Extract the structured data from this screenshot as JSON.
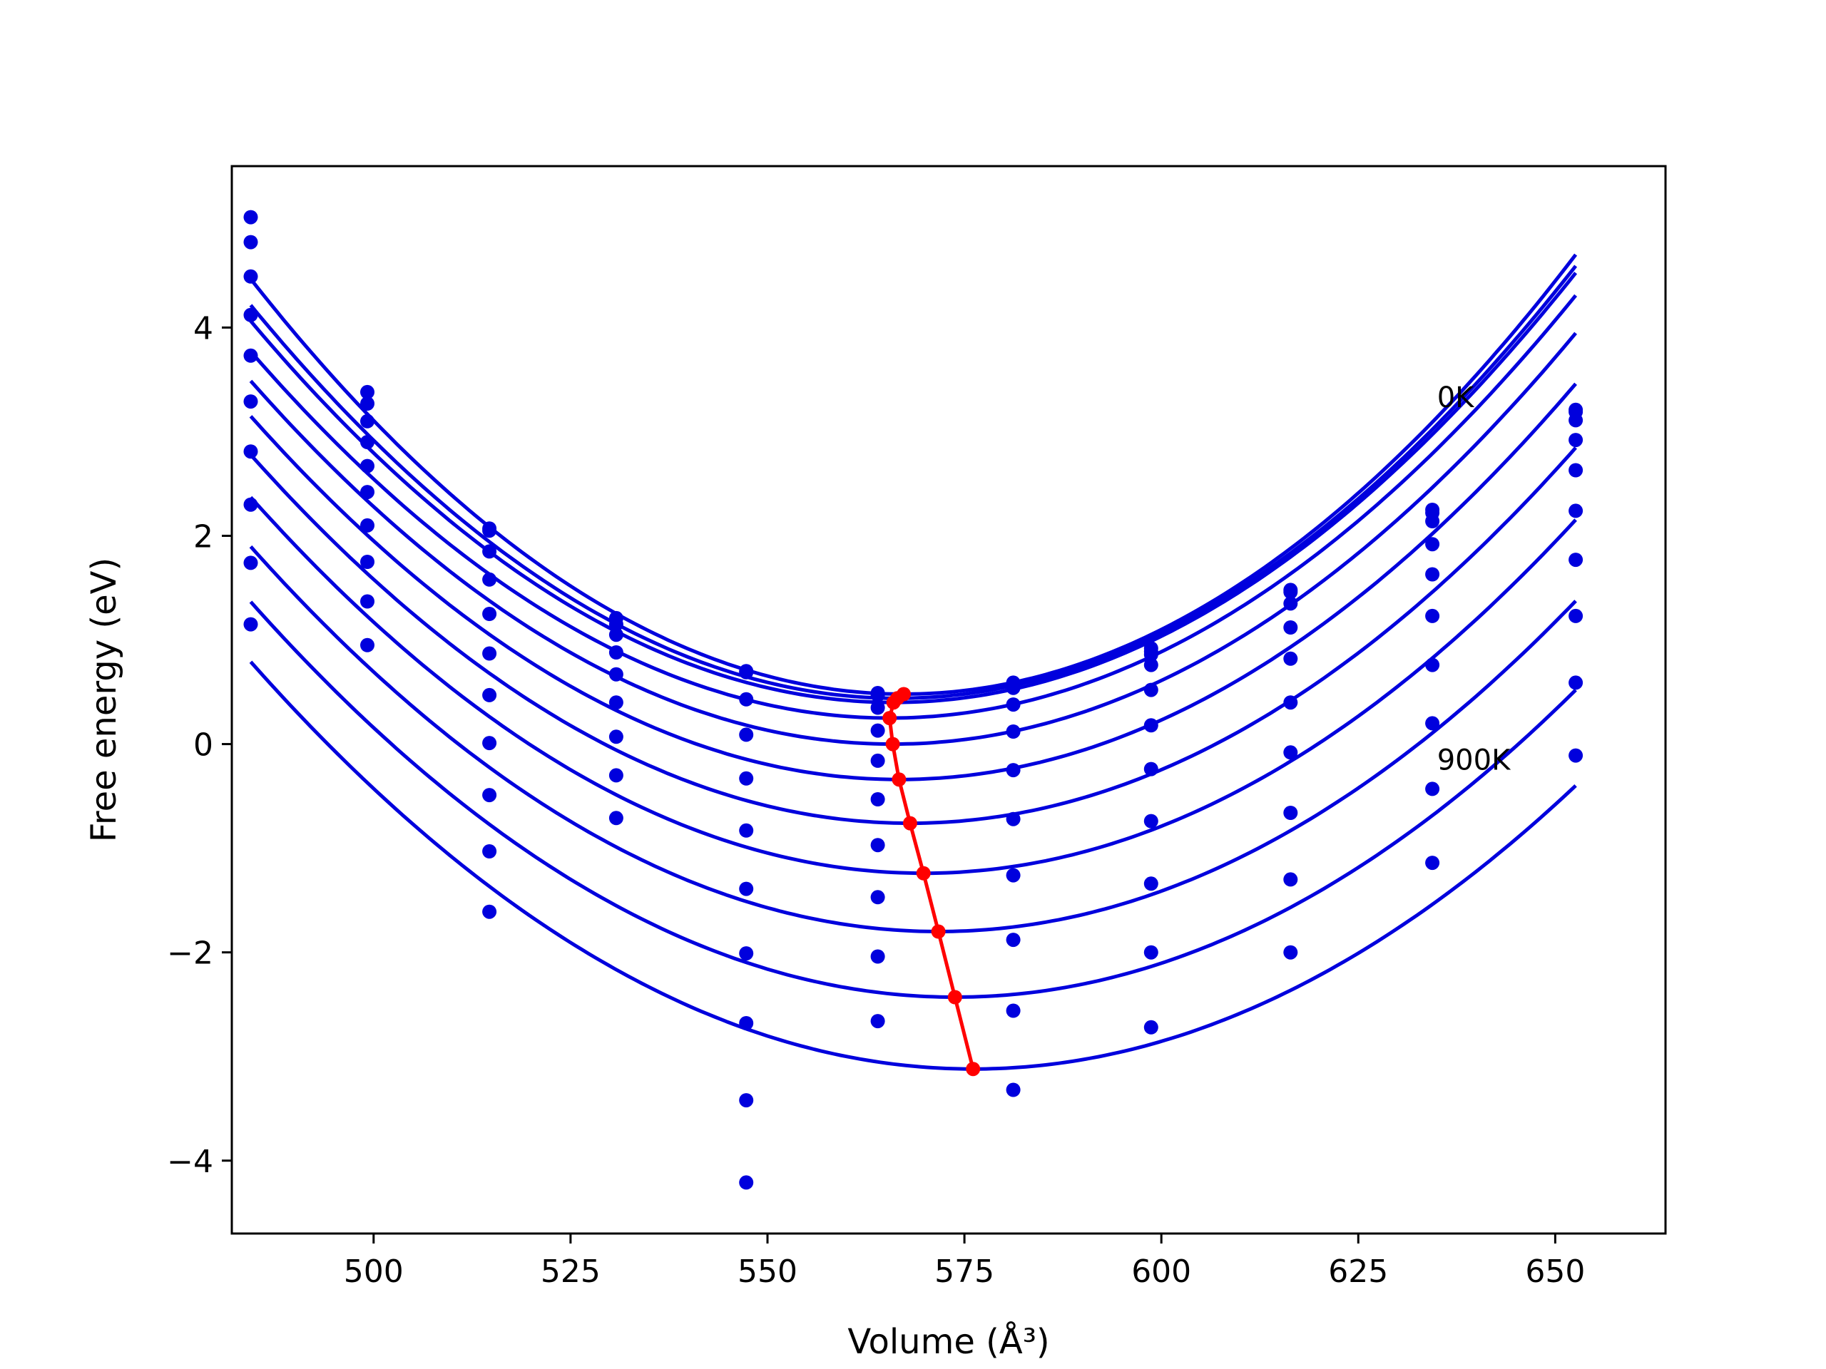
{
  "chart_data": {
    "type": "line",
    "title": "",
    "xlabel": "Volume (Å³)",
    "ylabel": "Free energy (eV)",
    "xlim": [
      482,
      664
    ],
    "ylim": [
      -4.7,
      5.55
    ],
    "xticks": [
      500,
      525,
      550,
      575,
      600,
      625,
      650
    ],
    "yticks": [
      -4,
      -2,
      0,
      2,
      4
    ],
    "xtick_labels": [
      "500",
      "525",
      "550",
      "575",
      "600",
      "625",
      "650"
    ],
    "ytick_labels": [
      "−4",
      "−2",
      "0",
      "2",
      "4"
    ],
    "grid": false,
    "legend": null,
    "annotations": [
      {
        "text": "0K",
        "x": 635,
        "y": 3.33
      },
      {
        "text": "900K",
        "x": 635,
        "y": -0.15
      }
    ],
    "volumes": [
      484.4,
      499.2,
      514.7,
      530.8,
      547.3,
      564.0,
      581.2,
      598.7,
      616.4,
      634.4,
      652.6
    ],
    "series": [
      {
        "color": "#0000dd",
        "points": [
          5.06,
          3.38,
          2.07,
          1.21,
          0.7,
          0.49,
          0.59,
          0.92,
          1.48,
          2.25,
          3.21
        ],
        "fit": {
          "a": 0.00058,
          "v0": 567.3,
          "f0": 0.48
        }
      },
      {
        "color": "#0000dd",
        "points": [
          4.82,
          3.27,
          2.05,
          1.15,
          0.69,
          0.47,
          0.57,
          0.89,
          1.46,
          2.22,
          3.19
        ],
        "fit": {
          "a": 0.00056,
          "v0": 566.5,
          "f0": 0.44
        }
      },
      {
        "color": "#0000dd",
        "points": [
          4.49,
          3.1,
          1.85,
          1.05,
          0.43,
          0.35,
          0.54,
          0.86,
          1.35,
          2.14,
          3.11
        ],
        "fit": {
          "a": 0.00055,
          "v0": 566.0,
          "f0": 0.4
        }
      },
      {
        "color": "#0000dd",
        "points": [
          4.12,
          2.9,
          1.58,
          0.88,
          0.09,
          0.13,
          0.38,
          0.76,
          1.12,
          1.92,
          2.92
        ],
        "fit": {
          "a": 0.000535,
          "v0": 565.5,
          "f0": 0.25
        }
      },
      {
        "color": "#0000dd",
        "points": [
          3.73,
          2.67,
          1.25,
          0.67,
          -0.33,
          -0.16,
          0.12,
          0.52,
          0.82,
          1.63,
          2.63
        ],
        "fit": {
          "a": 0.000525,
          "v0": 565.9,
          "f0": 0.0
        }
      },
      {
        "color": "#0000dd",
        "points": [
          3.29,
          2.42,
          0.87,
          0.4,
          -0.83,
          -0.53,
          -0.25,
          0.18,
          0.4,
          1.23,
          2.24
        ],
        "fit": {
          "a": 0.000515,
          "v0": 566.7,
          "f0": -0.34
        }
      },
      {
        "color": "#0000dd",
        "points": [
          2.81,
          2.1,
          0.47,
          0.07,
          -1.39,
          -0.97,
          -0.72,
          -0.24,
          -0.08,
          0.76,
          1.77
        ],
        "fit": {
          "a": 0.000505,
          "v0": 568.1,
          "f0": -0.76
        }
      },
      {
        "color": "#0000dd",
        "points": [
          2.3,
          1.75,
          0.01,
          -0.3,
          -2.01,
          -1.47,
          -1.26,
          -0.74,
          -0.66,
          0.2,
          1.23
        ],
        "fit": {
          "a": 0.000495,
          "v0": 569.8,
          "f0": -1.24
        }
      },
      {
        "color": "#0000dd",
        "points": [
          1.74,
          1.37,
          -0.49,
          -0.71,
          -2.68,
          -2.04,
          -1.88,
          -1.34,
          -1.3,
          -0.43,
          0.59
        ],
        "fit": {
          "a": 0.000485,
          "v0": 571.7,
          "f0": -1.8
        }
      },
      {
        "color": "#0000dd",
        "points": [
          1.15,
          0.95,
          -1.03,
          null,
          -3.42,
          -2.66,
          -2.56,
          -2.0,
          -2.0,
          -1.14,
          -0.11
        ],
        "fit": {
          "a": 0.000475,
          "v0": 573.8,
          "f0": -2.43
        }
      },
      {
        "color": "#0000dd",
        "points": [
          null,
          null,
          -1.61,
          null,
          -4.21,
          null,
          -3.32,
          -2.72,
          null,
          null,
          null
        ],
        "fit": {
          "a": 0.000465,
          "v0": 576.1,
          "f0": -3.12
        }
      }
    ],
    "minima_line": {
      "color": "#ff0000",
      "x": [
        567.3,
        566.5,
        566.0,
        565.5,
        565.9,
        566.7,
        568.1,
        569.8,
        571.7,
        573.8,
        576.1
      ],
      "y": [
        0.48,
        0.44,
        0.4,
        0.25,
        0.0,
        -0.34,
        -0.76,
        -1.24,
        -1.8,
        -2.43,
        -3.12
      ]
    }
  }
}
